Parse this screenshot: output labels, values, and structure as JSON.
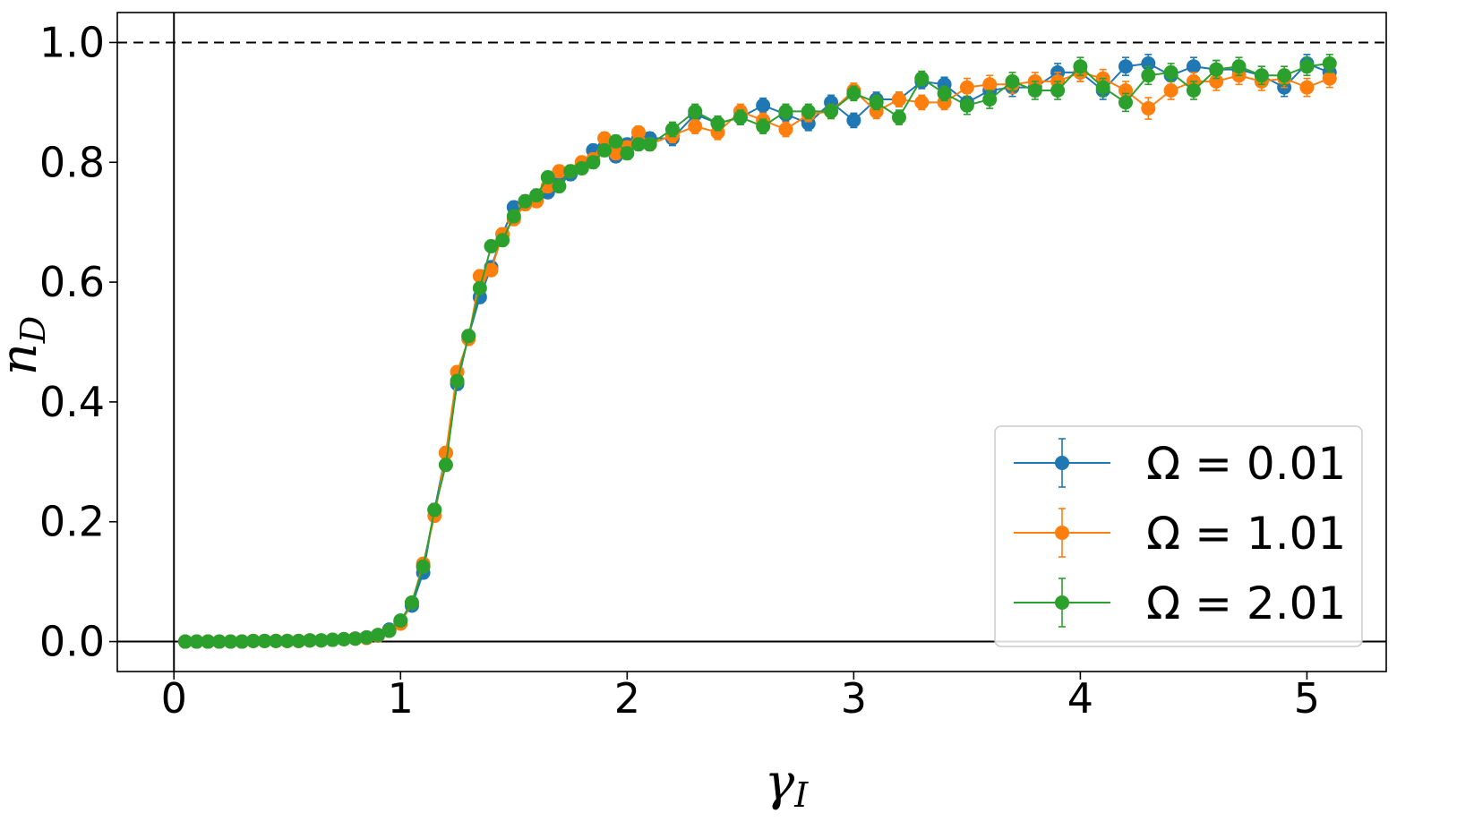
{
  "chart_data": {
    "type": "scatter",
    "title": "",
    "xlabel": "γ",
    "xlabel_sub": "I",
    "ylabel": "n",
    "ylabel_sub": "D",
    "xlim": [
      -0.25,
      5.35
    ],
    "ylim": [
      -0.05,
      1.05
    ],
    "xticks": [
      0,
      1,
      2,
      3,
      4,
      5
    ],
    "yticks": [
      0.0,
      0.2,
      0.4,
      0.6,
      0.8,
      1.0
    ],
    "xtick_labels": [
      "0",
      "1",
      "2",
      "3",
      "4",
      "5"
    ],
    "ytick_labels": [
      "0.0",
      "0.2",
      "0.4",
      "0.6",
      "0.8",
      "1.0"
    ],
    "reference_line_y": 1.0,
    "reference_line_style": "dashed",
    "grid": false,
    "legend_position": "lower-right",
    "markers": "circle-with-error-bars",
    "x": [
      0.05,
      0.1,
      0.15,
      0.2,
      0.25,
      0.3,
      0.35,
      0.4,
      0.45,
      0.5,
      0.55,
      0.6,
      0.65,
      0.7,
      0.75,
      0.8,
      0.85,
      0.9,
      0.95,
      1.0,
      1.05,
      1.1,
      1.15,
      1.2,
      1.25,
      1.3,
      1.35,
      1.4,
      1.45,
      1.5,
      1.55,
      1.6,
      1.65,
      1.7,
      1.75,
      1.8,
      1.85,
      1.9,
      1.95,
      2.0,
      2.05,
      2.1,
      2.2,
      2.3,
      2.4,
      2.5,
      2.6,
      2.7,
      2.8,
      2.9,
      3.0,
      3.1,
      3.2,
      3.3,
      3.4,
      3.5,
      3.6,
      3.7,
      3.8,
      3.9,
      4.0,
      4.1,
      4.2,
      4.3,
      4.4,
      4.5,
      4.6,
      4.7,
      4.8,
      4.9,
      5.0,
      5.1
    ],
    "series": [
      {
        "name": "Ω = 0.01",
        "legend_label": "Ω = 0.01",
        "color": "#1f77b4",
        "values": [
          0.0,
          0.0,
          0.0,
          0.0,
          0.0,
          0.0,
          0.001,
          0.001,
          0.001,
          0.001,
          0.001,
          0.002,
          0.002,
          0.003,
          0.004,
          0.005,
          0.007,
          0.01,
          0.02,
          0.035,
          0.06,
          0.115,
          0.22,
          0.315,
          0.43,
          0.51,
          0.575,
          0.625,
          0.68,
          0.725,
          0.735,
          0.74,
          0.75,
          0.775,
          0.78,
          0.795,
          0.82,
          0.825,
          0.81,
          0.83,
          0.84,
          0.84,
          0.84,
          0.88,
          0.865,
          0.875,
          0.895,
          0.88,
          0.865,
          0.9,
          0.87,
          0.905,
          0.905,
          0.935,
          0.93,
          0.9,
          0.92,
          0.925,
          0.925,
          0.95,
          0.95,
          0.92,
          0.96,
          0.965,
          0.945,
          0.96,
          0.955,
          0.955,
          0.945,
          0.925,
          0.965,
          0.95
        ],
        "errors": [
          0.002,
          0.002,
          0.002,
          0.002,
          0.002,
          0.002,
          0.002,
          0.002,
          0.002,
          0.002,
          0.002,
          0.002,
          0.002,
          0.003,
          0.003,
          0.003,
          0.004,
          0.005,
          0.006,
          0.007,
          0.008,
          0.01,
          0.01,
          0.01,
          0.01,
          0.01,
          0.01,
          0.01,
          0.01,
          0.01,
          0.01,
          0.01,
          0.01,
          0.01,
          0.01,
          0.01,
          0.01,
          0.01,
          0.01,
          0.01,
          0.01,
          0.01,
          0.012,
          0.012,
          0.012,
          0.012,
          0.012,
          0.012,
          0.012,
          0.012,
          0.012,
          0.012,
          0.012,
          0.012,
          0.012,
          0.015,
          0.015,
          0.015,
          0.015,
          0.015,
          0.015,
          0.015,
          0.015,
          0.015,
          0.015,
          0.015,
          0.015,
          0.015,
          0.015,
          0.015,
          0.015,
          0.015
        ]
      },
      {
        "name": "Ω = 1.01",
        "legend_label": "Ω = 1.01",
        "color": "#ff7f0e",
        "values": [
          0.0,
          0.0,
          0.0,
          0.0,
          0.0,
          0.0,
          0.001,
          0.001,
          0.001,
          0.001,
          0.001,
          0.002,
          0.002,
          0.003,
          0.004,
          0.005,
          0.006,
          0.01,
          0.018,
          0.03,
          0.065,
          0.13,
          0.21,
          0.315,
          0.45,
          0.505,
          0.61,
          0.62,
          0.68,
          0.705,
          0.73,
          0.735,
          0.76,
          0.785,
          0.785,
          0.8,
          0.805,
          0.84,
          0.815,
          0.825,
          0.85,
          0.83,
          0.845,
          0.86,
          0.85,
          0.885,
          0.87,
          0.855,
          0.88,
          0.885,
          0.92,
          0.885,
          0.905,
          0.9,
          0.9,
          0.925,
          0.93,
          0.93,
          0.935,
          0.935,
          0.95,
          0.94,
          0.92,
          0.89,
          0.92,
          0.935,
          0.935,
          0.945,
          0.935,
          0.94,
          0.925,
          0.94
        ],
        "errors": [
          0.002,
          0.002,
          0.002,
          0.002,
          0.002,
          0.002,
          0.002,
          0.002,
          0.002,
          0.002,
          0.002,
          0.002,
          0.002,
          0.003,
          0.003,
          0.003,
          0.004,
          0.005,
          0.006,
          0.007,
          0.008,
          0.01,
          0.01,
          0.01,
          0.01,
          0.01,
          0.01,
          0.01,
          0.01,
          0.01,
          0.01,
          0.01,
          0.01,
          0.01,
          0.01,
          0.01,
          0.01,
          0.01,
          0.01,
          0.01,
          0.01,
          0.01,
          0.012,
          0.012,
          0.012,
          0.012,
          0.012,
          0.012,
          0.012,
          0.012,
          0.012,
          0.012,
          0.012,
          0.012,
          0.012,
          0.015,
          0.015,
          0.015,
          0.015,
          0.015,
          0.015,
          0.015,
          0.015,
          0.018,
          0.015,
          0.015,
          0.015,
          0.015,
          0.015,
          0.015,
          0.015,
          0.015
        ]
      },
      {
        "name": "Ω = 2.01",
        "legend_label": "Ω = 2.01",
        "color": "#2ca02c",
        "values": [
          0.0,
          0.0,
          0.0,
          0.0,
          0.0,
          0.0,
          0.001,
          0.001,
          0.001,
          0.001,
          0.001,
          0.002,
          0.002,
          0.003,
          0.004,
          0.005,
          0.007,
          0.011,
          0.018,
          0.035,
          0.065,
          0.125,
          0.22,
          0.295,
          0.435,
          0.51,
          0.59,
          0.66,
          0.67,
          0.71,
          0.735,
          0.745,
          0.775,
          0.76,
          0.785,
          0.79,
          0.8,
          0.82,
          0.835,
          0.815,
          0.83,
          0.83,
          0.855,
          0.885,
          0.865,
          0.875,
          0.86,
          0.885,
          0.885,
          0.885,
          0.915,
          0.9,
          0.875,
          0.94,
          0.915,
          0.895,
          0.905,
          0.935,
          0.92,
          0.92,
          0.96,
          0.925,
          0.9,
          0.945,
          0.95,
          0.92,
          0.955,
          0.96,
          0.945,
          0.945,
          0.96,
          0.965
        ],
        "errors": [
          0.002,
          0.002,
          0.002,
          0.002,
          0.002,
          0.002,
          0.002,
          0.002,
          0.002,
          0.002,
          0.002,
          0.002,
          0.002,
          0.003,
          0.003,
          0.003,
          0.004,
          0.005,
          0.006,
          0.007,
          0.008,
          0.01,
          0.01,
          0.01,
          0.01,
          0.01,
          0.01,
          0.01,
          0.01,
          0.01,
          0.01,
          0.01,
          0.01,
          0.01,
          0.01,
          0.01,
          0.01,
          0.01,
          0.01,
          0.01,
          0.01,
          0.01,
          0.012,
          0.012,
          0.012,
          0.012,
          0.012,
          0.012,
          0.012,
          0.012,
          0.012,
          0.012,
          0.012,
          0.012,
          0.012,
          0.015,
          0.015,
          0.015,
          0.015,
          0.015,
          0.015,
          0.015,
          0.015,
          0.015,
          0.015,
          0.015,
          0.015,
          0.015,
          0.015,
          0.015,
          0.015,
          0.015
        ]
      }
    ]
  }
}
